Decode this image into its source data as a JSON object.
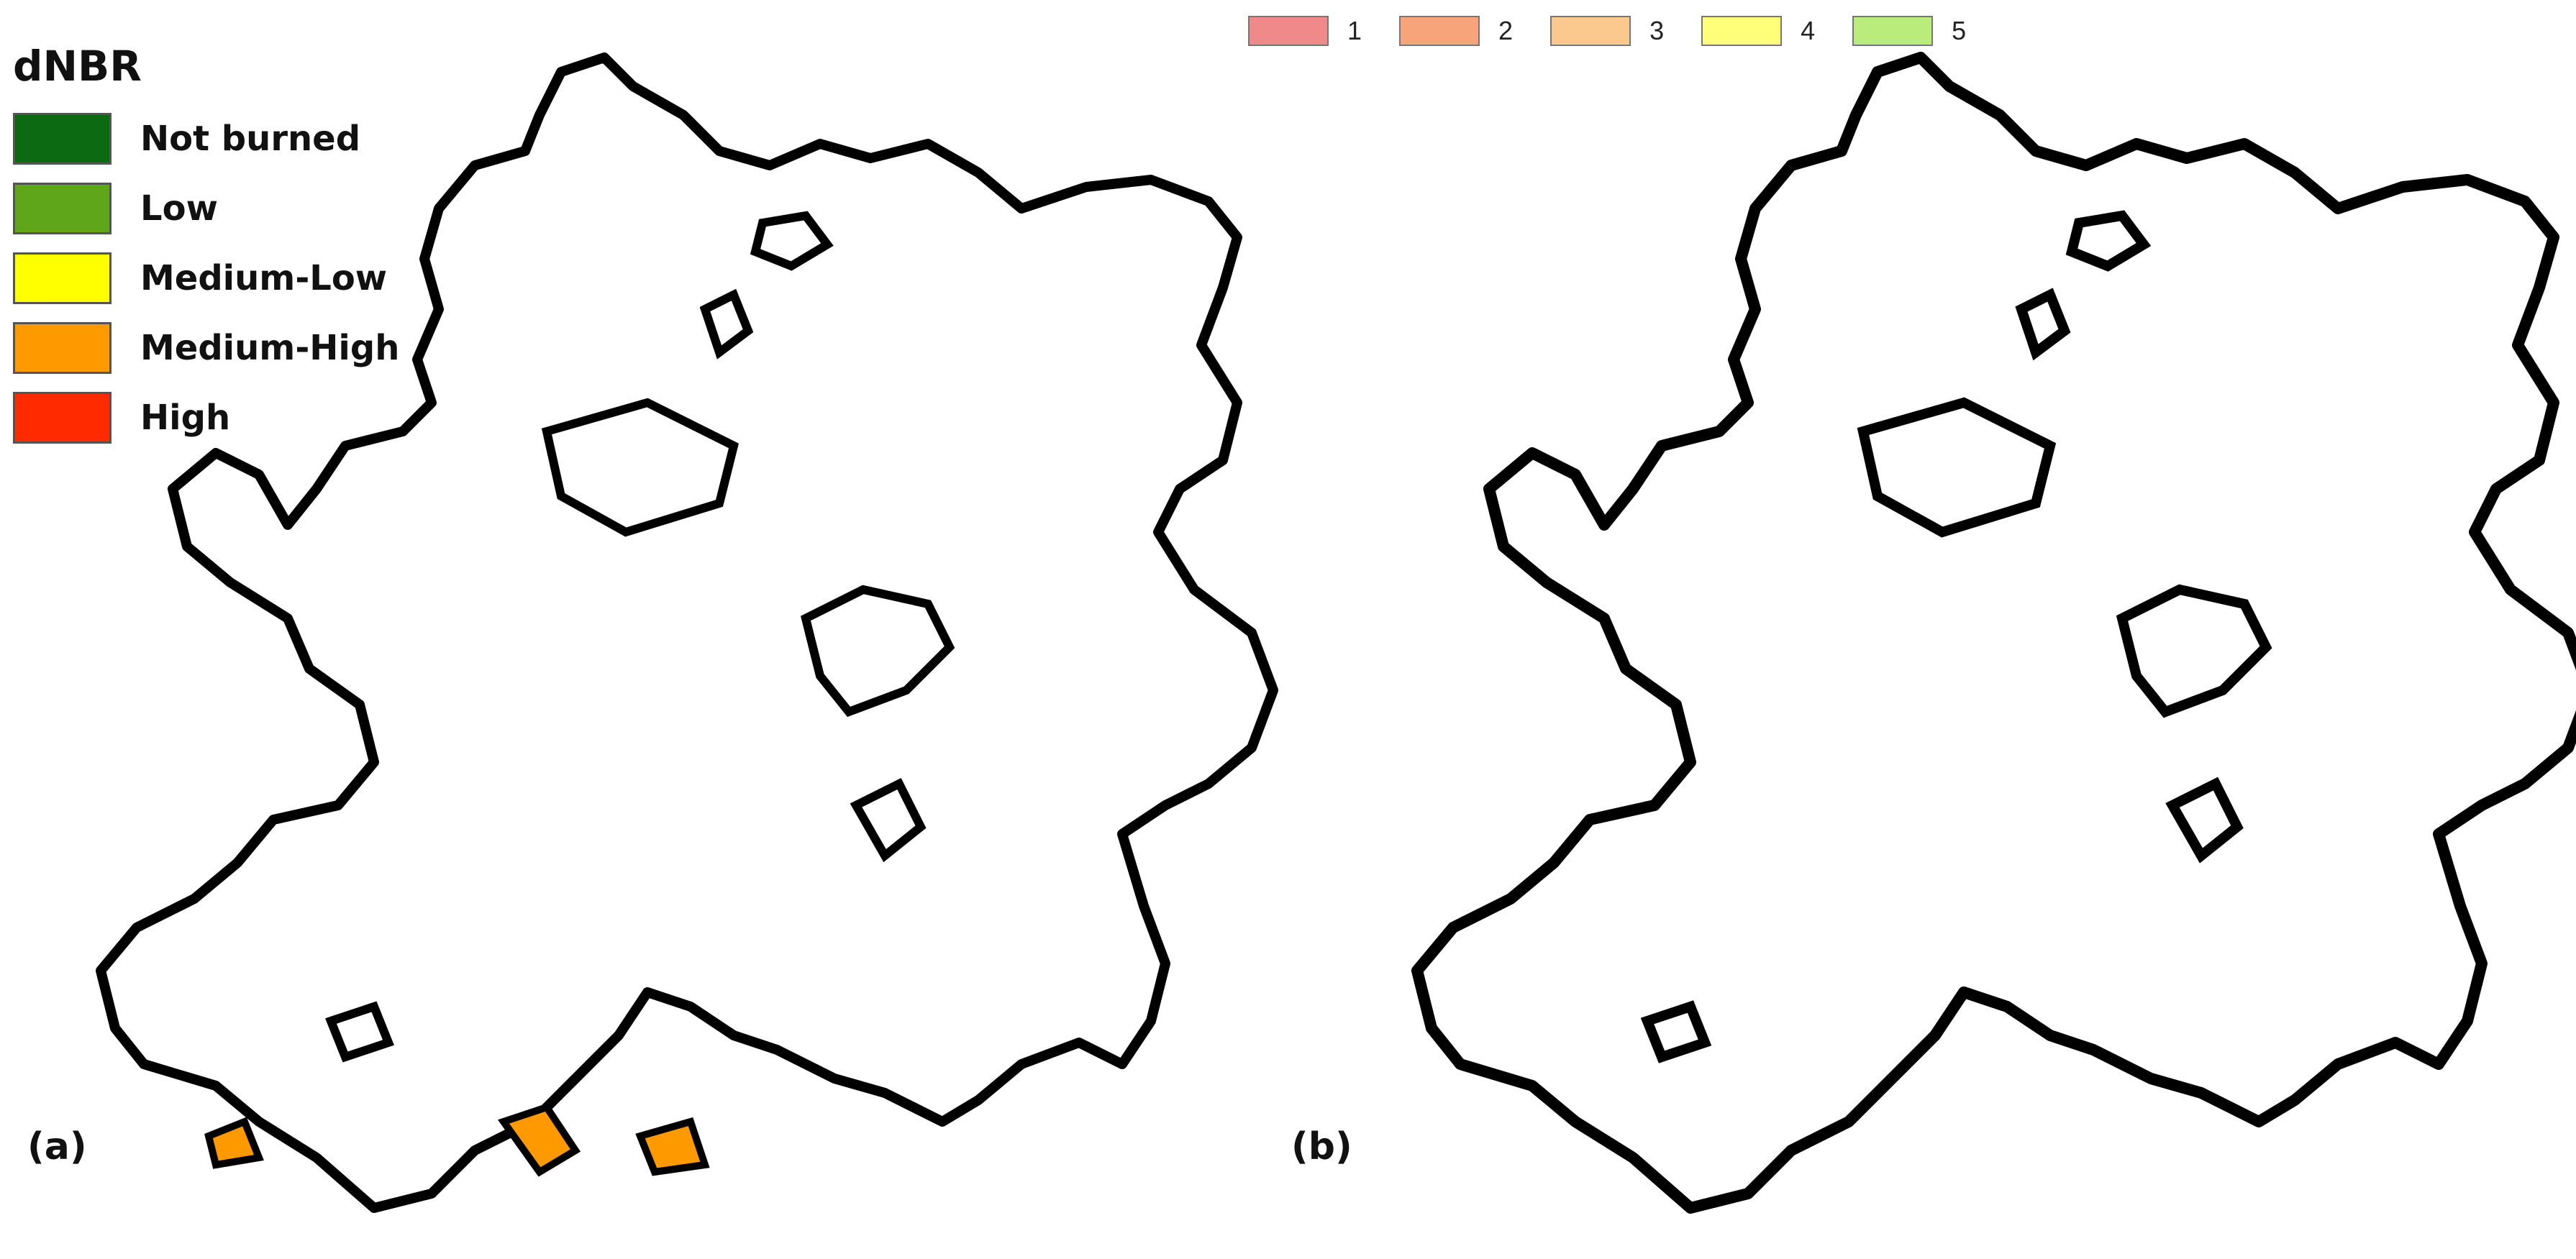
{
  "panel_a": {
    "label": "(a)",
    "legend_title": "dNBR",
    "classes": [
      {
        "label": "Not burned",
        "color": "#0b6a12"
      },
      {
        "label": "Low",
        "color": "#5fa61a"
      },
      {
        "label": "Medium-Low",
        "color": "#ffff00"
      },
      {
        "label": "Medium-High",
        "color": "#ff9900"
      },
      {
        "label": "High",
        "color": "#ff2a00"
      }
    ]
  },
  "panel_b": {
    "label": "(b)",
    "classes": [
      {
        "label": "1",
        "color": "#f08a8a"
      },
      {
        "label": "2",
        "color": "#f7a47a"
      },
      {
        "label": "3",
        "color": "#fbc98e"
      },
      {
        "label": "4",
        "color": "#ffff7a"
      },
      {
        "label": "5",
        "color": "#b9ec7a"
      }
    ]
  }
}
